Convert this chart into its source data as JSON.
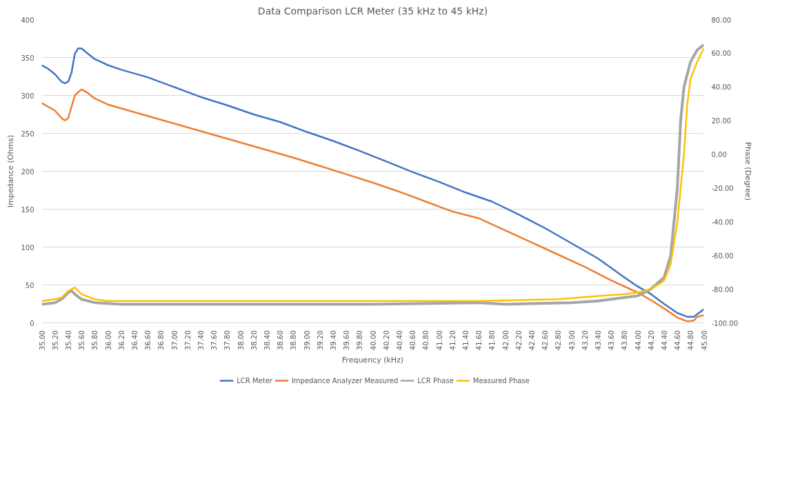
{
  "chart_data": {
    "type": "line",
    "title": "Data Comparison LCR Meter (35 kHz to 45 kHz)",
    "xlabel": "Frequency (kHz)",
    "ylabel": "Impedance (Ohms)",
    "y2label": "Phase (Degree)",
    "xlim": [
      35,
      45
    ],
    "xticks": [
      {
        "value": 35.0,
        "label": "35.00"
      },
      {
        "value": 35.2,
        "label": "35.20"
      },
      {
        "value": 35.4,
        "label": "35.40"
      },
      {
        "value": 35.6,
        "label": "35.60"
      },
      {
        "value": 35.8,
        "label": "35.80"
      },
      {
        "value": 36.0,
        "label": "36.00"
      },
      {
        "value": 36.2,
        "label": "36.20"
      },
      {
        "value": 36.4,
        "label": "36.40"
      },
      {
        "value": 36.6,
        "label": "36.60"
      },
      {
        "value": 36.8,
        "label": "36.80"
      },
      {
        "value": 37.0,
        "label": "37.00"
      },
      {
        "value": 37.2,
        "label": "37.20"
      },
      {
        "value": 37.4,
        "label": "37.40"
      },
      {
        "value": 37.6,
        "label": "37.60"
      },
      {
        "value": 37.8,
        "label": "37.80"
      },
      {
        "value": 38.0,
        "label": "38.00"
      },
      {
        "value": 38.2,
        "label": "38.20"
      },
      {
        "value": 38.4,
        "label": "38.40"
      },
      {
        "value": 38.6,
        "label": "38.60"
      },
      {
        "value": 38.8,
        "label": "38.80"
      },
      {
        "value": 39.0,
        "label": "39.00"
      },
      {
        "value": 39.2,
        "label": "39.20"
      },
      {
        "value": 39.4,
        "label": "39.40"
      },
      {
        "value": 39.6,
        "label": "39.60"
      },
      {
        "value": 39.8,
        "label": "39.80"
      },
      {
        "value": 40.0,
        "label": "40.00"
      },
      {
        "value": 40.2,
        "label": "40.20"
      },
      {
        "value": 40.4,
        "label": "40.40"
      },
      {
        "value": 40.6,
        "label": "40.60"
      },
      {
        "value": 40.8,
        "label": "40.80"
      },
      {
        "value": 41.0,
        "label": "41.00"
      },
      {
        "value": 41.2,
        "label": "41.20"
      },
      {
        "value": 41.4,
        "label": "41.40"
      },
      {
        "value": 41.6,
        "label": "41.60"
      },
      {
        "value": 41.8,
        "label": "41.80"
      },
      {
        "value": 42.0,
        "label": "42.00"
      },
      {
        "value": 42.2,
        "label": "42.20"
      },
      {
        "value": 42.4,
        "label": "42.40"
      },
      {
        "value": 42.6,
        "label": "42.60"
      },
      {
        "value": 42.8,
        "label": "42.80"
      },
      {
        "value": 43.0,
        "label": "43.00"
      },
      {
        "value": 43.2,
        "label": "43.20"
      },
      {
        "value": 43.4,
        "label": "43.40"
      },
      {
        "value": 43.6,
        "label": "43.60"
      },
      {
        "value": 43.8,
        "label": "43.80"
      },
      {
        "value": 44.0,
        "label": "44.00"
      },
      {
        "value": 44.2,
        "label": "44.20"
      },
      {
        "value": 44.4,
        "label": "44.40"
      },
      {
        "value": 44.6,
        "label": "44.60"
      },
      {
        "value": 44.8,
        "label": "44.80"
      },
      {
        "value": 45.0,
        "label": "45.00"
      }
    ],
    "ylim": [
      0,
      400
    ],
    "yticks": [
      0,
      50,
      100,
      150,
      200,
      250,
      300,
      350,
      400
    ],
    "y2lim": [
      -100,
      80
    ],
    "y2ticks": [
      {
        "value": -100,
        "label": "-100.00"
      },
      {
        "value": -80,
        "label": "-80.00"
      },
      {
        "value": -60,
        "label": "-60.00"
      },
      {
        "value": -40,
        "label": "-40.00"
      },
      {
        "value": -20,
        "label": "-20.00"
      },
      {
        "value": 0,
        "label": "0.00"
      },
      {
        "value": 20,
        "label": "20.00"
      },
      {
        "value": 40,
        "label": "40.00"
      },
      {
        "value": 60,
        "label": "60.00"
      },
      {
        "value": 80,
        "label": "80.00"
      }
    ],
    "grid": "y",
    "legend": "bottom",
    "marker": "none",
    "line_style": "solid",
    "series": [
      {
        "name": "LCR Meter",
        "color": "#4472c4",
        "x": [
          35.0,
          35.1,
          35.2,
          35.3,
          35.35,
          35.4,
          35.45,
          35.5,
          35.55,
          35.6,
          35.7,
          35.8,
          36.0,
          36.2,
          36.6,
          37.0,
          37.4,
          37.8,
          38.2,
          38.6,
          39.0,
          39.4,
          39.8,
          40.2,
          40.6,
          41.0,
          41.4,
          41.8,
          42.2,
          42.6,
          43.0,
          43.4,
          43.8,
          44.0,
          44.2,
          44.4,
          44.6,
          44.75,
          44.85,
          45.0
        ],
        "values": [
          340,
          335,
          328,
          318,
          316,
          318,
          330,
          355,
          362,
          362,
          355,
          348,
          340,
          334,
          324,
          311,
          298,
          287,
          275,
          265,
          252,
          240,
          227,
          213,
          199,
          186,
          172,
          160,
          143,
          125,
          105,
          85,
          60,
          48,
          38,
          25,
          13,
          8,
          8,
          18
        ]
      },
      {
        "name": "Impedance Analyzer Measured",
        "color": "#ed7d31",
        "x": [
          35.0,
          35.2,
          35.3,
          35.35,
          35.4,
          35.5,
          35.6,
          35.7,
          35.8,
          36.0,
          36.4,
          36.8,
          37.2,
          37.6,
          38.0,
          38.4,
          38.8,
          39.2,
          39.6,
          40.0,
          40.4,
          40.8,
          41.2,
          41.6,
          42.0,
          42.4,
          42.8,
          43.2,
          43.6,
          44.0,
          44.2,
          44.4,
          44.6,
          44.75,
          44.85,
          44.9,
          45.0
        ],
        "values": [
          290,
          280,
          270,
          267,
          270,
          300,
          308,
          303,
          296,
          288,
          278,
          268,
          258,
          248,
          238,
          228,
          218,
          207,
          196,
          185,
          173,
          160,
          147,
          138,
          122,
          106,
          90,
          74,
          56,
          40,
          30,
          19,
          7,
          2,
          3,
          8,
          10
        ]
      },
      {
        "name": "LCR Phase",
        "color": "#a5a5a5",
        "axis": "y2",
        "x": [
          35.0,
          35.2,
          35.3,
          35.4,
          35.45,
          35.5,
          35.6,
          35.8,
          36.2,
          40.0,
          41.6,
          42.0,
          43.0,
          43.4,
          43.8,
          44.0,
          44.2,
          44.4,
          44.5,
          44.6,
          44.65,
          44.7,
          44.8,
          44.9,
          45.0
        ],
        "values": [
          -89,
          -88,
          -86,
          -82,
          -81,
          -83,
          -86,
          -88,
          -89,
          -89,
          -88,
          -89,
          -88,
          -87,
          -85,
          -84,
          -80,
          -73,
          -60,
          -20,
          20,
          40,
          55,
          62,
          65
        ]
      },
      {
        "name": "Measured Phase",
        "color": "#ffc000",
        "axis": "y2",
        "x": [
          35.0,
          35.2,
          35.3,
          35.4,
          35.5,
          35.6,
          35.8,
          36.0,
          38.4,
          40.0,
          41.6,
          42.8,
          43.4,
          43.8,
          44.0,
          44.2,
          44.4,
          44.5,
          44.6,
          44.7,
          44.75,
          44.8,
          44.9,
          45.0
        ],
        "values": [
          -87,
          -86,
          -85,
          -81,
          -79,
          -83,
          -86,
          -87,
          -87,
          -87,
          -87,
          -86,
          -84,
          -83,
          -82,
          -80,
          -75,
          -65,
          -40,
          0,
          30,
          45,
          55,
          63
        ]
      }
    ]
  }
}
